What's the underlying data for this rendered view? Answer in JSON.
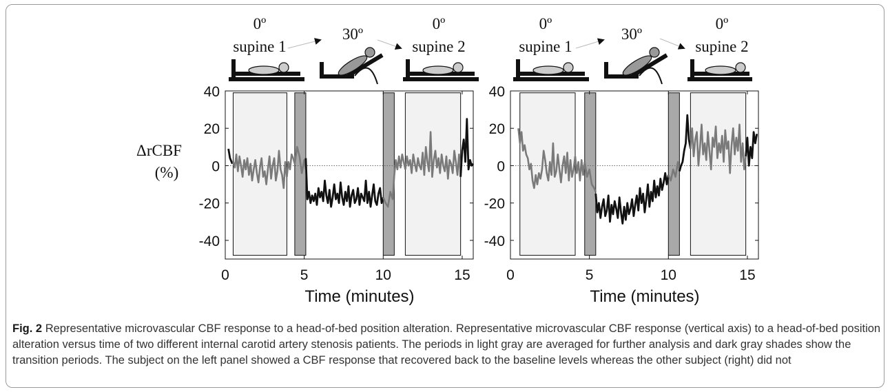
{
  "figure": {
    "caption_label": "Fig. 2",
    "caption_text": "Representative microvascular CBF response to a head-of-bed position alteration. Representative microvascular CBF response (vertical axis) to a head-of-bed position alteration versus time of two different internal carotid artery stenosis patients. The periods in light gray are averaged for further analysis and dark gray shades show the transition periods. The subject on the left panel showed a CBF response that recovered back to the baseline levels whereas the other subject (right) did not"
  },
  "colors": {
    "light_window": "#f2f2f2",
    "dark_window": "#a9a9a9",
    "trace_black": "#111111",
    "trace_gray": "#7a7a7a"
  },
  "chart_data": [
    {
      "type": "line",
      "xlabel": "Time (minutes)",
      "ylabel": [
        "ΔrCBF",
        "(%)"
      ],
      "xlim": [
        0,
        15.7
      ],
      "ylim": [
        -50,
        40
      ],
      "xticks": [
        0,
        5,
        10,
        15
      ],
      "yticks": [
        40,
        20,
        0,
        -20,
        -40
      ],
      "position_labels": [
        {
          "angle": "0º",
          "name": "supine 1"
        },
        {
          "angle": "30º",
          "name": ""
        },
        {
          "angle": "0º",
          "name": "supine 2"
        }
      ],
      "light_windows": [
        [
          0.5,
          3.9
        ],
        [
          11.4,
          14.9
        ]
      ],
      "dark_windows": [
        [
          4.4,
          5.1
        ],
        [
          10.0,
          10.7
        ]
      ],
      "series": [
        {
          "segment": "before",
          "style": "black",
          "x": [
            0.2,
            0.3,
            0.45
          ],
          "y": [
            9,
            4,
            1
          ]
        },
        {
          "segment": "supine1",
          "style": "gray",
          "x": [
            0.5,
            0.6,
            0.7,
            0.8,
            0.9,
            1.0,
            1.1,
            1.2,
            1.3,
            1.4,
            1.5,
            1.6,
            1.7,
            1.8,
            1.9,
            2.0,
            2.1,
            2.2,
            2.3,
            2.4,
            2.5,
            2.6,
            2.7,
            2.8,
            2.9,
            3.0,
            3.1,
            3.2,
            3.3,
            3.4,
            3.5,
            3.6,
            3.7,
            3.8,
            3.9
          ],
          "y": [
            2,
            -1,
            6,
            -3,
            5,
            0,
            -6,
            3,
            -2,
            4,
            -5,
            1,
            -8,
            -2,
            3,
            -4,
            -9,
            -1,
            4,
            -6,
            -3,
            -10,
            -2,
            5,
            -7,
            0,
            4,
            -8,
            -3,
            8,
            -2,
            -5,
            -12,
            2,
            -6
          ]
        },
        {
          "segment": "transition1",
          "style": "gray",
          "x": [
            3.9,
            4.0,
            4.1,
            4.2,
            4.3,
            4.4
          ],
          "y": [
            -6,
            2,
            -2,
            6,
            4,
            1
          ]
        },
        {
          "segment": "dark1",
          "style": "gray",
          "x": [
            4.4,
            4.55,
            4.7,
            4.85,
            5.0,
            5.1
          ],
          "y": [
            1,
            10,
            5,
            -4,
            3,
            -2
          ]
        },
        {
          "segment": "tilt",
          "style": "black",
          "x": [
            5.1,
            5.2,
            5.3,
            5.4,
            5.5,
            5.6,
            5.7,
            5.8,
            5.9,
            6.0,
            6.1,
            6.2,
            6.3,
            6.4,
            6.5,
            6.6,
            6.7,
            6.8,
            6.9,
            7.0,
            7.1,
            7.2,
            7.3,
            7.4,
            7.5,
            7.6,
            7.7,
            7.8,
            7.9,
            8.0,
            8.1,
            8.2,
            8.3,
            8.4,
            8.5,
            8.6,
            8.7,
            8.8,
            8.9,
            9.0,
            9.1,
            9.2,
            9.3,
            9.4,
            9.5,
            9.6,
            9.7,
            9.8,
            9.9,
            10.0
          ],
          "y": [
            4,
            -18,
            -14,
            -20,
            -16,
            -19,
            -15,
            -21,
            -12,
            -17,
            -14,
            -19,
            -8,
            -16,
            -20,
            -13,
            -22,
            -17,
            -10,
            -18,
            -15,
            -20,
            -9,
            -17,
            -21,
            -14,
            -19,
            -11,
            -22,
            -16,
            -13,
            -20,
            -18,
            -12,
            -21,
            -15,
            -17,
            -19,
            -8,
            -20,
            -14,
            -22,
            -16,
            -10,
            -19,
            -21,
            -15,
            -12,
            -20,
            -17
          ]
        },
        {
          "segment": "dark2",
          "style": "gray",
          "x": [
            10.0,
            10.15,
            10.3,
            10.45,
            10.6,
            10.7
          ],
          "y": [
            -17,
            -20,
            -22,
            -14,
            -18,
            -5
          ]
        },
        {
          "segment": "transition2",
          "style": "gray",
          "x": [
            10.7,
            10.8,
            10.9,
            11.0,
            11.1,
            11.2,
            11.3,
            11.4
          ],
          "y": [
            -5,
            3,
            -2,
            5,
            -1,
            6,
            2,
            -2
          ]
        },
        {
          "segment": "supine2",
          "style": "gray",
          "x": [
            11.4,
            11.5,
            11.6,
            11.7,
            11.8,
            11.9,
            12.0,
            12.1,
            12.2,
            12.3,
            12.4,
            12.5,
            12.6,
            12.7,
            12.8,
            12.9,
            13.0,
            13.1,
            13.2,
            13.3,
            13.4,
            13.5,
            13.6,
            13.7,
            13.8,
            13.9,
            14.0,
            14.1,
            14.2,
            14.3,
            14.4,
            14.5,
            14.6,
            14.7,
            14.8,
            14.9
          ],
          "y": [
            -2,
            5,
            0,
            3,
            -4,
            6,
            1,
            -3,
            4,
            0,
            -2,
            7,
            -5,
            10,
            2,
            -3,
            18,
            -6,
            3,
            8,
            -1,
            4,
            -4,
            6,
            0,
            -3,
            5,
            -7,
            3,
            1,
            -4,
            8,
            2,
            -5,
            6,
            -6
          ]
        },
        {
          "segment": "after",
          "style": "black",
          "x": [
            14.9,
            15.0,
            15.1,
            15.2,
            15.3,
            15.4,
            15.5,
            15.6,
            15.7
          ],
          "y": [
            -6,
            8,
            14,
            2,
            25,
            -2,
            3,
            0,
            1
          ]
        }
      ]
    },
    {
      "type": "line",
      "xlabel": "Time (minutes)",
      "ylabel": [],
      "xlim": [
        0,
        15.7
      ],
      "ylim": [
        -50,
        40
      ],
      "xticks": [
        0,
        5,
        10,
        15
      ],
      "yticks": [
        40,
        20,
        0,
        -20,
        -40
      ],
      "position_labels": [
        {
          "angle": "0º",
          "name": "supine 1"
        },
        {
          "angle": "30º",
          "name": ""
        },
        {
          "angle": "0º",
          "name": "supine 2"
        }
      ],
      "light_windows": [
        [
          0.6,
          4.1
        ],
        [
          11.4,
          14.9
        ]
      ],
      "dark_windows": [
        [
          4.7,
          5.4
        ],
        [
          10.0,
          10.7
        ]
      ],
      "series": [
        {
          "segment": "supine1",
          "style": "gray",
          "x": [
            0.5,
            0.6,
            0.7,
            0.8,
            0.9,
            1.0,
            1.1,
            1.2,
            1.3,
            1.4,
            1.5,
            1.6,
            1.7,
            1.8,
            1.9,
            2.0,
            2.1,
            2.2,
            2.3,
            2.4,
            2.5,
            2.6,
            2.7,
            2.8,
            2.9,
            3.0,
            3.1,
            3.2,
            3.3,
            3.4,
            3.5,
            3.6,
            3.7,
            3.8,
            3.9,
            4.0,
            4.1
          ],
          "y": [
            20,
            12,
            18,
            8,
            11,
            6,
            4,
            -2,
            1,
            -8,
            -12,
            -5,
            -10,
            -4,
            -7,
            -2,
            8,
            3,
            -4,
            -8,
            2,
            -5,
            12,
            -6,
            -3,
            6,
            -2,
            -9,
            0,
            5,
            -4,
            7,
            -8,
            3,
            -6,
            -2,
            5
          ]
        },
        {
          "segment": "transition1",
          "style": "gray",
          "x": [
            4.1,
            4.2,
            4.3,
            4.4,
            4.5,
            4.6,
            4.7
          ],
          "y": [
            5,
            -4,
            2,
            -8,
            3,
            -5,
            2
          ]
        },
        {
          "segment": "dark1",
          "style": "gray",
          "x": [
            4.7,
            4.85,
            5.0,
            5.15,
            5.3,
            5.4
          ],
          "y": [
            2,
            -6,
            -2,
            -10,
            -12,
            -14
          ]
        },
        {
          "segment": "tilt",
          "style": "black",
          "x": [
            5.4,
            5.5,
            5.6,
            5.7,
            5.8,
            5.9,
            6.0,
            6.1,
            6.2,
            6.3,
            6.4,
            6.5,
            6.6,
            6.7,
            6.8,
            6.9,
            7.0,
            7.1,
            7.2,
            7.3,
            7.4,
            7.5,
            7.6,
            7.7,
            7.8,
            7.9,
            8.0,
            8.1,
            8.2,
            8.3,
            8.4,
            8.5,
            8.6,
            8.7,
            8.8,
            8.9,
            9.0,
            9.1,
            9.2,
            9.3,
            9.4,
            9.5,
            9.6,
            9.7,
            9.8,
            9.9,
            10.0
          ],
          "y": [
            -15,
            -25,
            -20,
            -28,
            -22,
            -18,
            -27,
            -24,
            -16,
            -30,
            -21,
            -26,
            -19,
            -23,
            -28,
            -17,
            -25,
            -31,
            -22,
            -29,
            -20,
            -26,
            -23,
            -18,
            -27,
            -21,
            -16,
            -24,
            -12,
            -20,
            -15,
            -25,
            -18,
            -10,
            -22,
            -14,
            -19,
            -8,
            -17,
            -11,
            -16,
            -7,
            -13,
            -9,
            -4,
            -10,
            -5
          ]
        },
        {
          "segment": "dark2",
          "style": "gray",
          "x": [
            10.0,
            10.15,
            10.3,
            10.45,
            10.6,
            10.7
          ],
          "y": [
            -5,
            -8,
            -2,
            -6,
            2,
            -3
          ]
        },
        {
          "segment": "transition2",
          "style": "black",
          "x": [
            10.7,
            10.8,
            10.9,
            11.0,
            11.1,
            11.2,
            11.3,
            11.4
          ],
          "y": [
            -3,
            0,
            2,
            8,
            12,
            27,
            14,
            9
          ]
        },
        {
          "segment": "supine2",
          "style": "gray",
          "x": [
            11.4,
            11.5,
            11.6,
            11.7,
            11.8,
            11.9,
            12.0,
            12.1,
            12.2,
            12.3,
            12.4,
            12.5,
            12.6,
            12.7,
            12.8,
            12.9,
            13.0,
            13.1,
            13.2,
            13.3,
            13.4,
            13.5,
            13.6,
            13.7,
            13.8,
            13.9,
            14.0,
            14.1,
            14.2,
            14.3,
            14.4,
            14.5,
            14.6,
            14.7,
            14.8,
            14.9
          ],
          "y": [
            9,
            20,
            5,
            14,
            18,
            0,
            10,
            22,
            6,
            12,
            3,
            18,
            8,
            -2,
            15,
            10,
            21,
            4,
            12,
            7,
            16,
            2,
            19,
            9,
            13,
            -4,
            11,
            20,
            6,
            15,
            8,
            22,
            2,
            12,
            -2,
            5
          ]
        },
        {
          "segment": "after",
          "style": "black",
          "x": [
            14.9,
            15.0,
            15.1,
            15.2,
            15.3,
            15.4,
            15.5,
            15.6
          ],
          "y": [
            5,
            15,
            0,
            10,
            4,
            18,
            12,
            17
          ]
        }
      ]
    }
  ]
}
